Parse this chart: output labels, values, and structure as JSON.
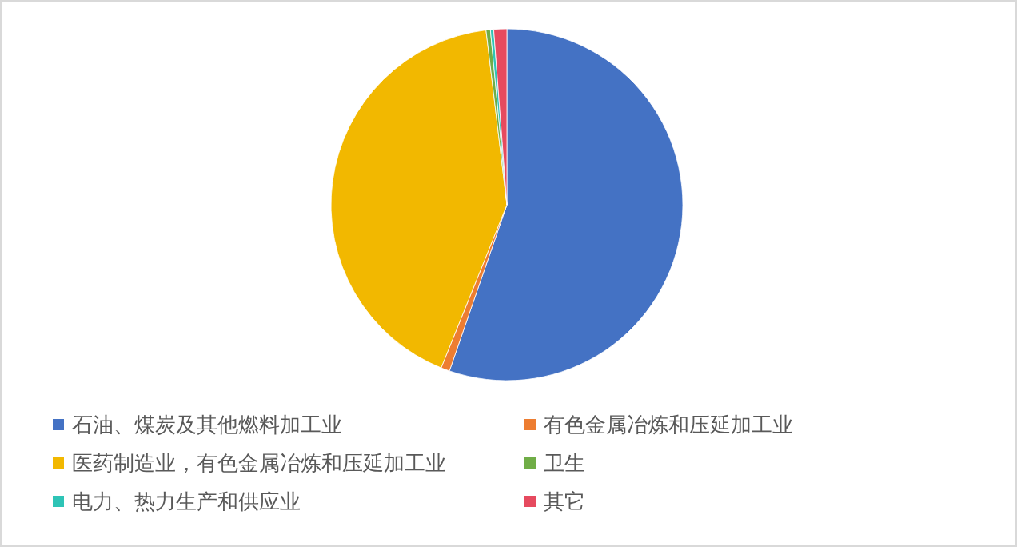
{
  "chart_data": {
    "type": "pie",
    "categories": [
      "石油、煤炭及其他燃料加工业",
      "有色金属冶炼和压延加工业",
      "医药制造业，有色金属冶炼和压延加工业",
      "卫生",
      "电力、热力生产和供应业",
      "其它"
    ],
    "values": [
      55.3,
      0.8,
      42.0,
      0.4,
      0.3,
      1.2
    ],
    "colors": [
      "#4472c4",
      "#ed7d31",
      "#f2b800",
      "#70ad47",
      "#2ec4b6",
      "#e64a5f"
    ],
    "legend": "bottom"
  }
}
